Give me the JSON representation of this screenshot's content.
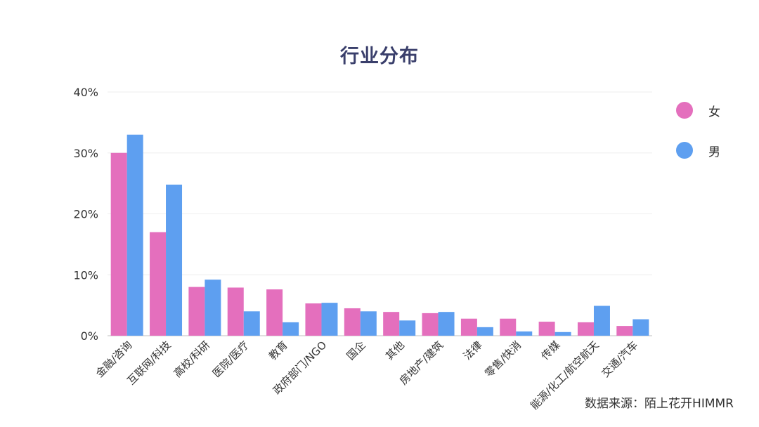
{
  "chart_data": {
    "type": "bar",
    "title": "行业分布",
    "categories": [
      "金融/咨询",
      "互联网/科技",
      "高校/科研",
      "医院/医疗",
      "教育",
      "政府部门/NGO",
      "国企",
      "其他",
      "房地产/建筑",
      "法律",
      "零售/快消",
      "传媒",
      "能源/化工/航空航天",
      "交通/汽车"
    ],
    "series": [
      {
        "name": "女",
        "color": "#e46fbd",
        "values": [
          30,
          17,
          8,
          7.9,
          7.6,
          5.3,
          4.5,
          3.9,
          3.7,
          2.8,
          2.8,
          2.3,
          2.2,
          1.6
        ]
      },
      {
        "name": "男",
        "color": "#5e9ff0",
        "values": [
          33,
          24.8,
          9.2,
          4,
          2.2,
          5.4,
          4,
          2.5,
          3.9,
          1.4,
          0.7,
          0.6,
          4.9,
          2.7
        ]
      }
    ],
    "y_ticks": [
      "0%",
      "10%",
      "20%",
      "30%",
      "40%"
    ],
    "ylim": [
      0,
      40
    ],
    "y_unit": "%",
    "grid": true,
    "legend_position": "right"
  },
  "source": "数据来源：陌上花开HIMMR"
}
